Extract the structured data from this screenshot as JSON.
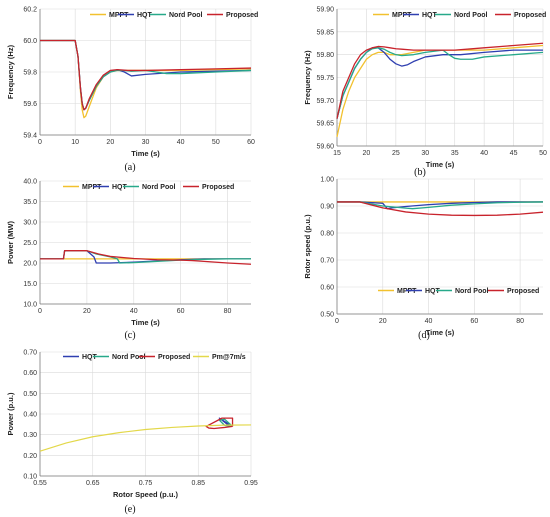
{
  "colors": {
    "MPPT": "#f2c12e",
    "HQT": "#2f3fb0",
    "Nord Pool": "#27a98a",
    "Proposed": "#c8232c",
    "Pm@7m/s": "#e3d84a",
    "grid": "#dadada",
    "axis": "#7a7a7a"
  },
  "chart_data": [
    {
      "id": "a",
      "panel_label": "(a)",
      "type": "line",
      "xlabel": "Time (s)",
      "ylabel": "Frequency (Hz)",
      "xlim": [
        0,
        60
      ],
      "ylim": [
        59.4,
        60.2
      ],
      "xticks": [
        0,
        10,
        20,
        30,
        40,
        50,
        60
      ],
      "yticks": [
        59.4,
        59.6,
        59.8,
        60.0,
        60.2
      ],
      "ytick_decimals": 1,
      "legend_position": "top",
      "grid": true,
      "series": [
        {
          "name": "MPPT",
          "x": [
            0,
            10,
            10.8,
            11.5,
            12,
            12.5,
            13,
            14,
            15,
            16,
            18,
            20,
            22,
            25,
            30,
            40,
            50,
            60
          ],
          "y": [
            60.0,
            60.0,
            59.9,
            59.68,
            59.56,
            59.51,
            59.52,
            59.58,
            59.64,
            59.7,
            59.77,
            59.8,
            59.81,
            59.81,
            59.81,
            59.81,
            59.815,
            59.82
          ]
        },
        {
          "name": "HQT",
          "x": [
            0,
            10,
            10.8,
            11.5,
            12,
            12.5,
            13,
            14,
            16,
            18,
            20,
            22,
            24,
            26,
            30,
            40,
            50,
            60
          ],
          "y": [
            60.0,
            60.0,
            59.9,
            59.7,
            59.6,
            59.56,
            59.57,
            59.62,
            59.71,
            59.77,
            59.8,
            59.815,
            59.8,
            59.775,
            59.785,
            59.8,
            59.805,
            59.81
          ]
        },
        {
          "name": "Nord Pool",
          "x": [
            0,
            10,
            10.8,
            11.5,
            12,
            12.5,
            13,
            14,
            16,
            18,
            20,
            22,
            24,
            26,
            30,
            33,
            36,
            40,
            50,
            60
          ],
          "y": [
            60.0,
            60.0,
            59.9,
            59.7,
            59.6,
            59.56,
            59.57,
            59.62,
            59.71,
            59.77,
            59.8,
            59.81,
            59.81,
            59.805,
            59.81,
            59.8,
            59.79,
            59.79,
            59.8,
            59.81
          ]
        },
        {
          "name": "Proposed",
          "x": [
            0,
            10,
            10.8,
            11.5,
            12,
            12.5,
            13,
            14,
            16,
            18,
            20,
            22,
            25,
            30,
            40,
            50,
            60
          ],
          "y": [
            60.0,
            60.0,
            59.9,
            59.7,
            59.6,
            59.56,
            59.57,
            59.63,
            59.72,
            59.78,
            59.81,
            59.815,
            59.81,
            59.81,
            59.815,
            59.82,
            59.825
          ]
        }
      ]
    },
    {
      "id": "b",
      "panel_label": "(b)",
      "type": "line",
      "xlabel": "Time (s)",
      "ylabel": "Frequency (Hz)",
      "xlim": [
        15,
        50
      ],
      "ylim": [
        59.6,
        59.9
      ],
      "xticks": [
        15,
        20,
        25,
        30,
        35,
        40,
        45,
        50
      ],
      "yticks": [
        59.6,
        59.65,
        59.7,
        59.75,
        59.8,
        59.85,
        59.9
      ],
      "ytick_decimals": 2,
      "legend_position": "top",
      "grid": true,
      "series": [
        {
          "name": "MPPT",
          "x": [
            15,
            16,
            17,
            18,
            19,
            20,
            21,
            22,
            23,
            24,
            25,
            26,
            28,
            30,
            35,
            40,
            45,
            50
          ],
          "y": [
            59.62,
            59.68,
            59.72,
            59.75,
            59.77,
            59.79,
            59.8,
            59.805,
            59.805,
            59.8,
            59.8,
            59.8,
            59.805,
            59.81,
            59.81,
            59.81,
            59.815,
            59.82
          ]
        },
        {
          "name": "HQT",
          "x": [
            15,
            16,
            17,
            18,
            19,
            20,
            21,
            22,
            23,
            24,
            25,
            26,
            27,
            28,
            30,
            33,
            36,
            40,
            45,
            50
          ],
          "y": [
            59.66,
            59.71,
            59.74,
            59.77,
            59.79,
            59.805,
            59.815,
            59.815,
            59.805,
            59.79,
            59.78,
            59.775,
            59.778,
            59.785,
            59.795,
            59.8,
            59.8,
            59.805,
            59.81,
            59.81
          ]
        },
        {
          "name": "Nord Pool",
          "x": [
            15,
            16,
            17,
            18,
            19,
            20,
            21,
            22,
            23,
            24,
            25,
            26,
            28,
            30,
            33,
            34,
            35,
            36,
            38,
            40,
            45,
            50
          ],
          "y": [
            59.66,
            59.71,
            59.74,
            59.77,
            59.79,
            59.805,
            59.813,
            59.815,
            59.812,
            59.805,
            59.8,
            59.798,
            59.8,
            59.805,
            59.81,
            59.8,
            59.792,
            59.79,
            59.79,
            59.795,
            59.8,
            59.805
          ]
        },
        {
          "name": "Proposed",
          "x": [
            15,
            16,
            17,
            18,
            19,
            20,
            21,
            22,
            23,
            24,
            25,
            26,
            28,
            30,
            35,
            40,
            45,
            50
          ],
          "y": [
            59.66,
            59.72,
            59.75,
            59.78,
            59.8,
            59.81,
            59.815,
            59.818,
            59.817,
            59.815,
            59.813,
            59.812,
            59.81,
            59.81,
            59.81,
            59.815,
            59.82,
            59.825
          ]
        }
      ]
    },
    {
      "id": "c",
      "panel_label": "(c)",
      "type": "line",
      "xlabel": "Time (s)",
      "ylabel": "Power (MW)",
      "xlim": [
        0,
        90
      ],
      "ylim": [
        10,
        40
      ],
      "xticks": [
        0,
        20,
        40,
        60,
        80
      ],
      "yticks": [
        10,
        15,
        20,
        25,
        30,
        35,
        40
      ],
      "ytick_decimals": 1,
      "legend_position": "top",
      "grid": true,
      "series": [
        {
          "name": "MPPT",
          "x": [
            0,
            90
          ],
          "y": [
            21,
            21
          ]
        },
        {
          "name": "HQT",
          "x": [
            0,
            10,
            10.5,
            20,
            21,
            23,
            24,
            30,
            40,
            50,
            60,
            70,
            80,
            90
          ],
          "y": [
            21,
            21,
            23,
            23,
            22.5,
            21.5,
            20,
            20,
            20.2,
            20.5,
            20.8,
            21,
            21,
            21
          ]
        },
        {
          "name": "Nord Pool",
          "x": [
            0,
            10,
            10.5,
            20,
            21,
            24,
            30,
            33,
            34,
            40,
            50,
            60,
            70,
            80,
            90
          ],
          "y": [
            21,
            21,
            23,
            23,
            22.8,
            22.2,
            21.5,
            21,
            20,
            20.1,
            20.4,
            20.7,
            20.9,
            21,
            21
          ]
        },
        {
          "name": "Proposed",
          "x": [
            0,
            10,
            10.5,
            20,
            25,
            30,
            40,
            50,
            60,
            65,
            70,
            80,
            90
          ],
          "y": [
            21,
            21,
            23,
            23,
            22.2,
            21.6,
            21.1,
            20.8,
            20.7,
            20.6,
            20.4,
            20,
            19.7
          ]
        }
      ]
    },
    {
      "id": "d",
      "panel_label": "(d)",
      "type": "line",
      "xlabel": "Time (s)",
      "ylabel": "Rotor speed (p.u.)",
      "xlim": [
        0,
        90
      ],
      "ylim": [
        0.5,
        1.0
      ],
      "xticks": [
        0,
        20,
        40,
        60,
        80
      ],
      "yticks": [
        0.5,
        0.6,
        0.7,
        0.8,
        0.9,
        1.0
      ],
      "ytick_decimals": 2,
      "legend_position": "bottom",
      "grid": true,
      "series": [
        {
          "name": "MPPT",
          "x": [
            0,
            90
          ],
          "y": [
            0.915,
            0.915
          ]
        },
        {
          "name": "HQT",
          "x": [
            0,
            10,
            20,
            22,
            24,
            30,
            40,
            50,
            60,
            70,
            80,
            90
          ],
          "y": [
            0.915,
            0.915,
            0.91,
            0.89,
            0.893,
            0.898,
            0.905,
            0.91,
            0.913,
            0.915,
            0.915,
            0.915
          ]
        },
        {
          "name": "Nord Pool",
          "x": [
            0,
            10,
            20,
            30,
            33,
            40,
            50,
            60,
            70,
            80,
            90
          ],
          "y": [
            0.915,
            0.915,
            0.9,
            0.892,
            0.89,
            0.895,
            0.903,
            0.908,
            0.912,
            0.914,
            0.915
          ]
        },
        {
          "name": "Proposed",
          "x": [
            0,
            10,
            20,
            30,
            40,
            50,
            60,
            70,
            80,
            90
          ],
          "y": [
            0.915,
            0.915,
            0.893,
            0.878,
            0.87,
            0.866,
            0.865,
            0.866,
            0.87,
            0.877
          ]
        }
      ]
    },
    {
      "id": "e",
      "panel_label": "(e)",
      "type": "line",
      "xlabel": "Rotor Speed (p.u.)",
      "ylabel": "Power (p.u.)",
      "xlim": [
        0.55,
        0.95
      ],
      "ylim": [
        0.1,
        0.7
      ],
      "xticks": [
        0.55,
        0.65,
        0.75,
        0.85,
        0.95
      ],
      "yticks": [
        0.1,
        0.2,
        0.3,
        0.4,
        0.5,
        0.6,
        0.7
      ],
      "ytick_decimals": 2,
      "legend_position": "top",
      "grid": true,
      "series": [
        {
          "name": "HQT",
          "x": [
            0.915,
            0.89,
            0.9,
            0.91,
            0.915
          ],
          "y": [
            0.34,
            0.38,
            0.36,
            0.34,
            0.34
          ]
        },
        {
          "name": "Nord Pool",
          "x": [
            0.915,
            0.9,
            0.89,
            0.9,
            0.915
          ],
          "y": [
            0.34,
            0.375,
            0.37,
            0.345,
            0.34
          ]
        },
        {
          "name": "Proposed",
          "x": [
            0.915,
            0.915,
            0.895,
            0.865,
            0.87,
            0.88,
            0.9,
            0.915
          ],
          "y": [
            0.34,
            0.38,
            0.38,
            0.34,
            0.332,
            0.33,
            0.335,
            0.34
          ]
        },
        {
          "name": "Pm@7m/s",
          "x": [
            0.55,
            0.6,
            0.65,
            0.7,
            0.75,
            0.8,
            0.85,
            0.9,
            0.95
          ],
          "y": [
            0.22,
            0.26,
            0.29,
            0.31,
            0.325,
            0.335,
            0.342,
            0.346,
            0.347
          ]
        }
      ]
    }
  ]
}
